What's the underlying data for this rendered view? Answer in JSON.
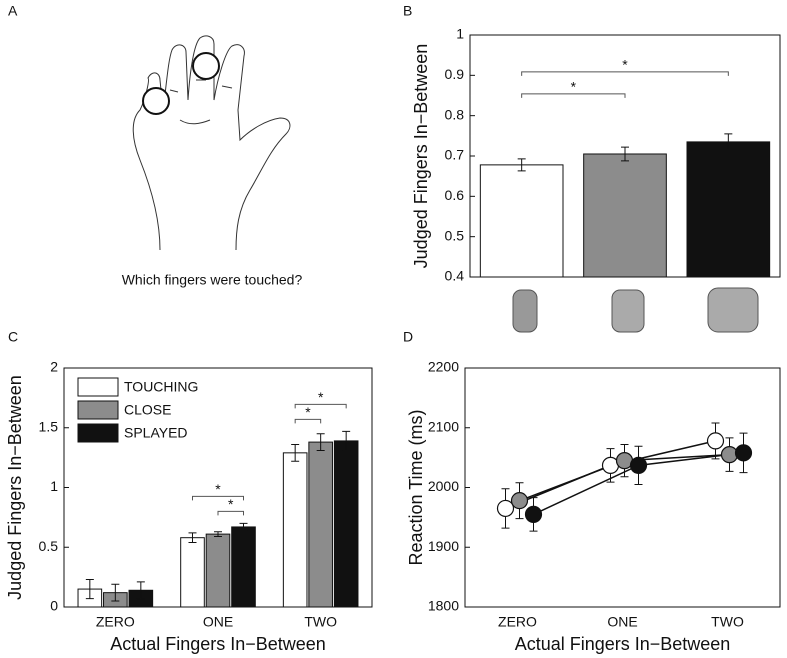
{
  "panel_labels": [
    "A",
    "B",
    "C",
    "D"
  ],
  "panel_a": {
    "caption": "Which fingers were touched?"
  },
  "chart_data": [
    {
      "type": "bar",
      "ylabel": "Judged Fingers In−Between",
      "categories": [
        null,
        null,
        null
      ],
      "values": [
        0.678,
        0.705,
        0.735
      ],
      "errors": [
        0.015,
        0.017,
        0.02
      ],
      "colors": [
        "#ffffff",
        "#8c8c8c",
        "#111111"
      ],
      "ylim": [
        0.4,
        1
      ],
      "yticks": [
        0.4,
        0.5,
        0.6,
        0.7,
        0.8,
        0.9,
        1
      ],
      "significance": [
        {
          "categories": [
            0,
            1
          ],
          "label": "*"
        },
        {
          "categories": [
            0,
            2
          ],
          "label": "*"
        }
      ]
    },
    {
      "type": "grouped_bar",
      "xlabel": "Actual Fingers In−Between",
      "ylabel": "Judged Fingers In−Between",
      "categories": [
        "ZERO",
        "ONE",
        "TWO"
      ],
      "series": [
        {
          "name": "TOUCHING",
          "color": "#ffffff",
          "values": [
            0.15,
            0.58,
            1.29
          ],
          "errors": [
            0.08,
            0.04,
            0.07
          ]
        },
        {
          "name": "CLOSE",
          "color": "#8c8c8c",
          "values": [
            0.12,
            0.61,
            1.38
          ],
          "errors": [
            0.07,
            0.02,
            0.07
          ]
        },
        {
          "name": "SPLAYED",
          "color": "#111111",
          "values": [
            0.14,
            0.67,
            1.39
          ],
          "errors": [
            0.07,
            0.03,
            0.08
          ]
        }
      ],
      "ylim": [
        0,
        2
      ],
      "yticks": [
        0,
        0.5,
        1,
        1.5,
        2
      ],
      "legend": "upper left",
      "significance": [
        {
          "category": 1,
          "series": [
            1,
            2
          ],
          "label": "*"
        },
        {
          "category": 1,
          "series": [
            0,
            2
          ],
          "label": "*"
        },
        {
          "category": 2,
          "series": [
            0,
            1
          ],
          "label": "*"
        },
        {
          "category": 2,
          "series": [
            0,
            2
          ],
          "label": "*"
        }
      ]
    },
    {
      "type": "line",
      "xlabel": "Actual Fingers In−Between",
      "ylabel": "Reaction Time (ms)",
      "categories": [
        "ZERO",
        "ONE",
        "TWO"
      ],
      "series": [
        {
          "name": "TOUCHING",
          "color": "#ffffff",
          "values": [
            1965,
            2037,
            2078
          ],
          "errors": [
            33,
            28,
            30
          ]
        },
        {
          "name": "CLOSE",
          "color": "#8c8c8c",
          "values": [
            1978,
            2045,
            2055
          ],
          "errors": [
            30,
            27,
            28
          ]
        },
        {
          "name": "SPLAYED",
          "color": "#111111",
          "values": [
            1955,
            2037,
            2058
          ],
          "errors": [
            28,
            32,
            33
          ]
        }
      ],
      "ylim": [
        1800,
        2200
      ],
      "yticks": [
        1800,
        1900,
        2000,
        2100,
        2200
      ]
    }
  ]
}
